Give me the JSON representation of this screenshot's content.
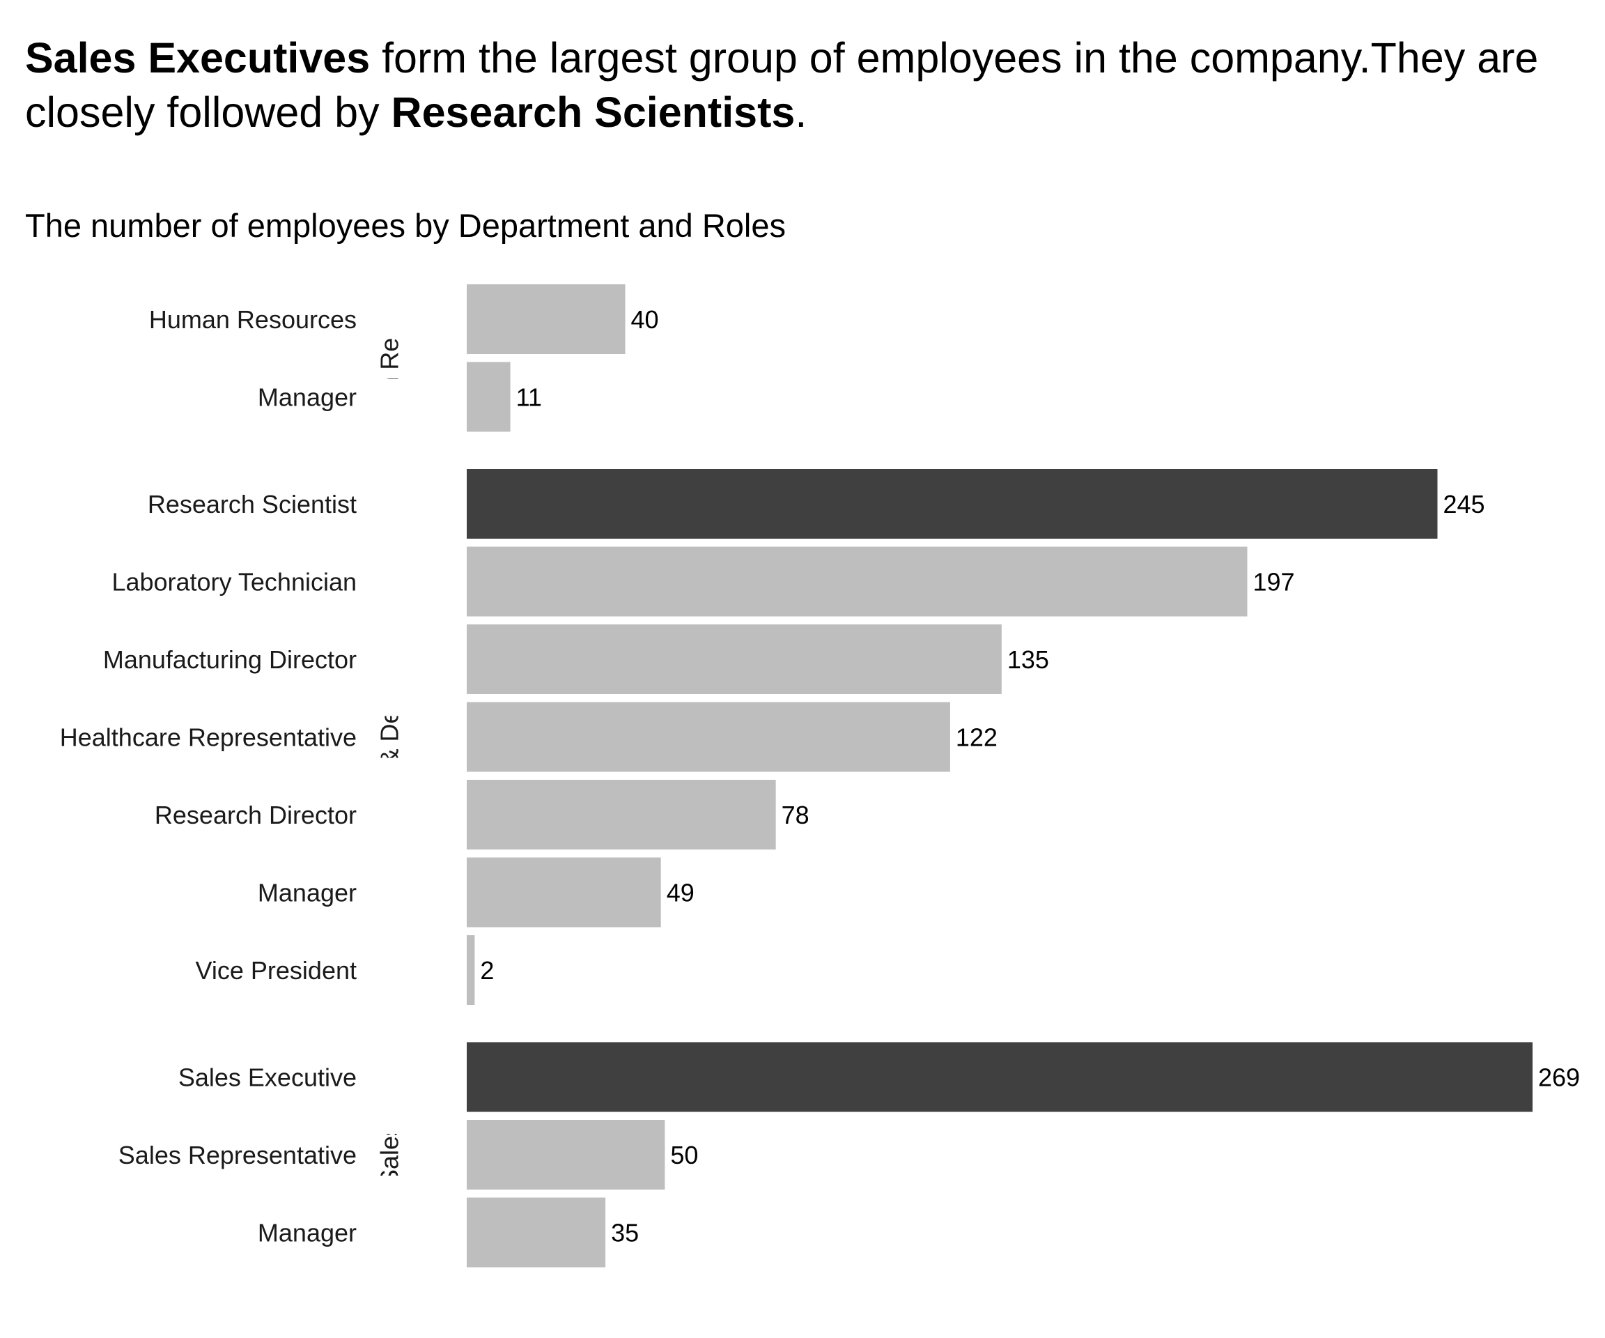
{
  "headline": {
    "bold1": "Sales Executives",
    "text1": " form the largest group of employees in the company.They are closely followed by ",
    "bold2": "Research Scientists",
    "text2": "."
  },
  "subtitle": "The number of employees by Department and Roles",
  "chart_data": {
    "type": "bar",
    "orientation": "horizontal",
    "facets": [
      {
        "name": "Human Resources",
        "display_label": "uman Resourc",
        "bars": [
          {
            "category": "Human Resources",
            "value": 40,
            "highlight": false
          },
          {
            "category": "Manager",
            "value": 11,
            "highlight": false
          }
        ]
      },
      {
        "name": "Research & Development",
        "display_label": "Research & Development",
        "bars": [
          {
            "category": "Research Scientist",
            "value": 245,
            "highlight": true
          },
          {
            "category": "Laboratory Technician",
            "value": 197,
            "highlight": false
          },
          {
            "category": "Manufacturing Director",
            "value": 135,
            "highlight": false
          },
          {
            "category": "Healthcare Representative",
            "value": 122,
            "highlight": false
          },
          {
            "category": "Research Director",
            "value": 78,
            "highlight": false
          },
          {
            "category": "Manager",
            "value": 49,
            "highlight": false
          },
          {
            "category": "Vice President",
            "value": 2,
            "highlight": false
          }
        ]
      },
      {
        "name": "Sales",
        "display_label": "Sales",
        "bars": [
          {
            "category": "Sales Executive",
            "value": 269,
            "highlight": true
          },
          {
            "category": "Sales Representative",
            "value": 50,
            "highlight": false
          },
          {
            "category": "Manager",
            "value": 35,
            "highlight": false
          }
        ]
      }
    ],
    "xlim": [
      0,
      269
    ],
    "grid": false,
    "legend": "none",
    "colors": {
      "highlight": "#404040",
      "normal": "#bebebe"
    }
  }
}
